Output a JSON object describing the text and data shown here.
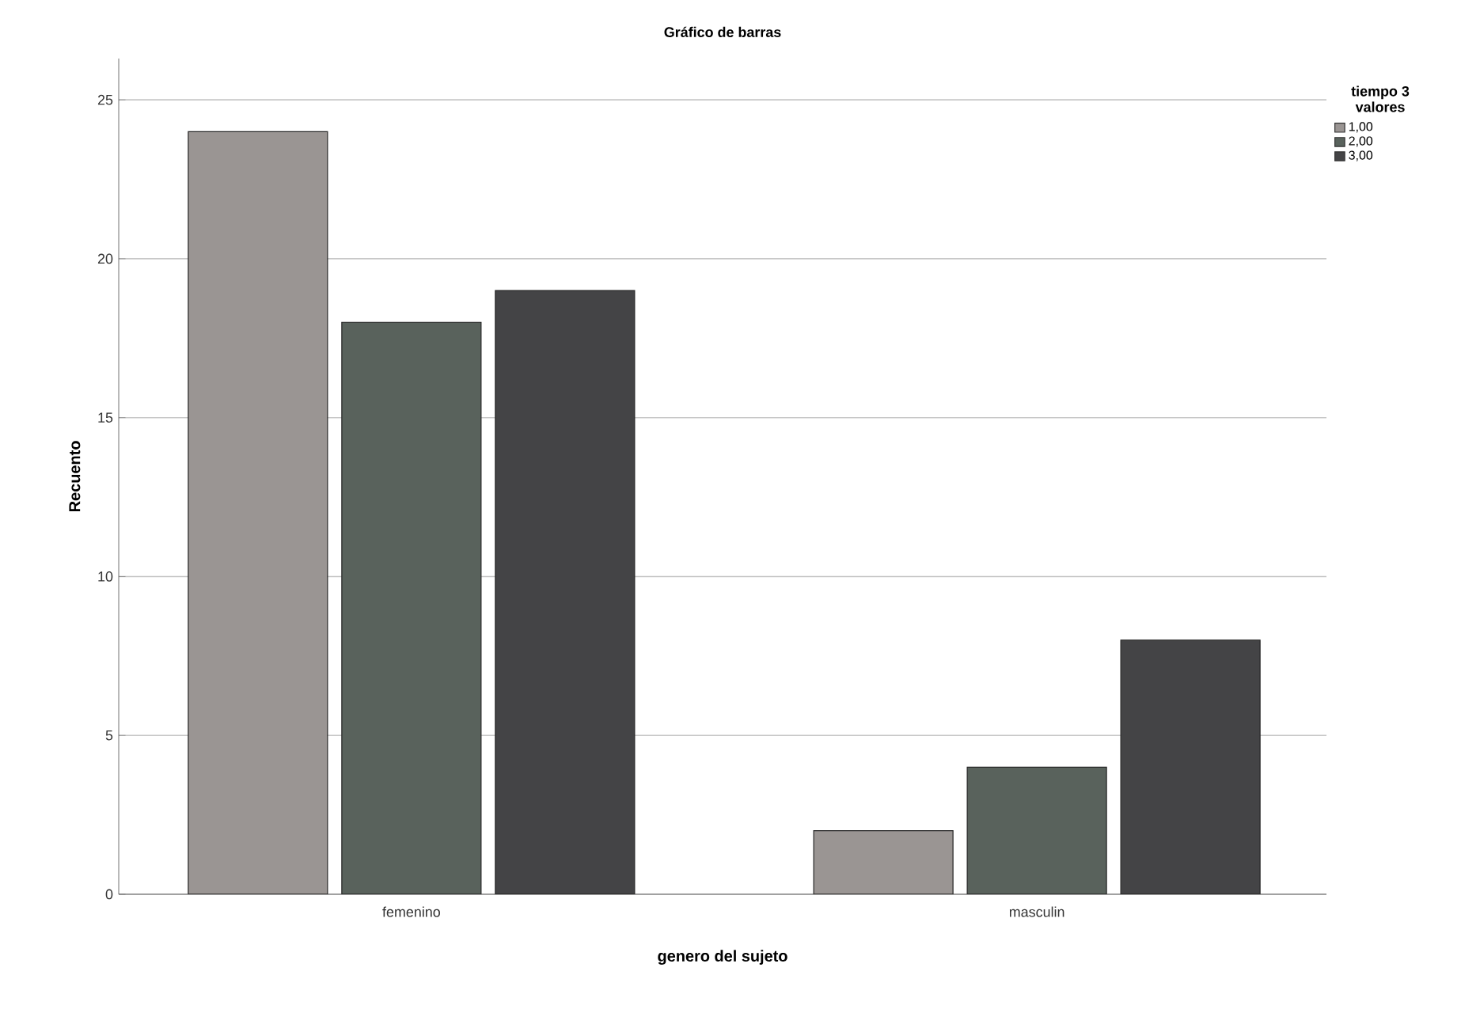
{
  "chart_data": {
    "type": "bar",
    "title": "Gráfico de barras",
    "xlabel": "genero del sujeto",
    "ylabel": "Recuento",
    "legend_title": "tiempo 3 valores",
    "categories": [
      "femenino",
      "masculin"
    ],
    "series": [
      {
        "name": "1,00",
        "color": "#9a9593",
        "values": [
          24,
          2
        ]
      },
      {
        "name": "2,00",
        "color": "#59625c",
        "values": [
          18,
          4
        ]
      },
      {
        "name": "3,00",
        "color": "#444446",
        "values": [
          19,
          8
        ]
      }
    ],
    "ylim": [
      0,
      26.3
    ],
    "yticks": [
      0,
      5,
      10,
      15,
      20,
      25
    ],
    "grid": "y",
    "legend": "top right"
  }
}
